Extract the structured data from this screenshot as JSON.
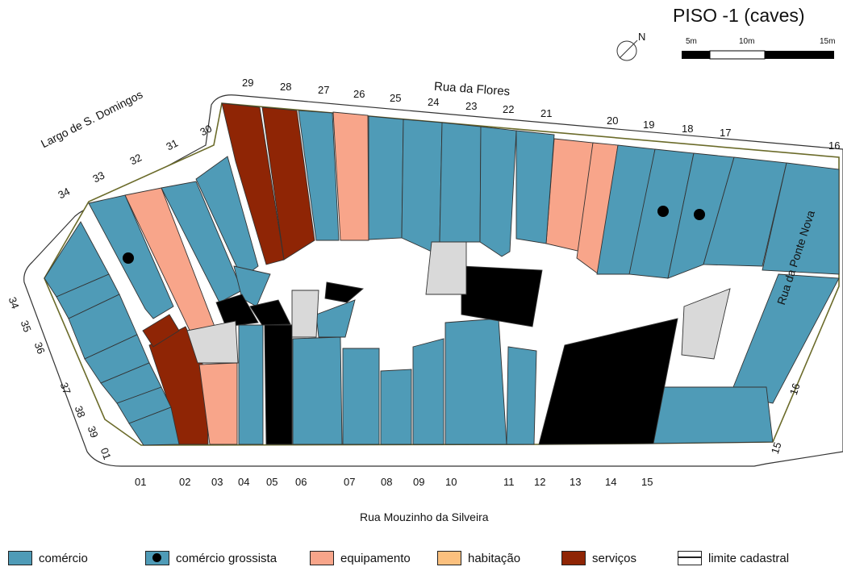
{
  "title": "PISO -1 (caves)",
  "compass": {
    "label": "N"
  },
  "scale": {
    "labels": [
      "5m",
      "10m",
      "15m"
    ]
  },
  "streets": {
    "flores": "Rua da Flores",
    "domingos": "Largo de S. Domingos",
    "ponte_nova": "Rua da Ponte Nova",
    "mouzinho": "Rua Mouzinho da Silveira"
  },
  "numbers": {
    "flores": [
      "29",
      "28",
      "27",
      "26",
      "25",
      "24",
      "23",
      "22",
      "21",
      "20",
      "19",
      "18",
      "17",
      "16"
    ],
    "domingos": [
      "34",
      "33",
      "32",
      "31",
      "30"
    ],
    "west": [
      "34",
      "35",
      "36",
      "37",
      "38",
      "39",
      "01"
    ],
    "bottom": [
      "01",
      "02",
      "03",
      "04",
      "05",
      "06",
      "07",
      "08",
      "09",
      "10",
      "11",
      "12",
      "13",
      "14",
      "15"
    ],
    "east": [
      "16",
      "15"
    ]
  },
  "legend": [
    {
      "key": "comercio",
      "label": "comércio",
      "color": "#4f9bb7"
    },
    {
      "key": "grossista",
      "label": "comércio grossista",
      "color": "#4f9bb7"
    },
    {
      "key": "equipamento",
      "label": "equipamento",
      "color": "#f8a58a"
    },
    {
      "key": "habitacao",
      "label": "habitação",
      "color": "#fbc07e"
    },
    {
      "key": "servicos",
      "label": "serviços",
      "color": "#8f2505"
    },
    {
      "key": "limite",
      "label": "limite cadastral",
      "color": "#ffffff"
    }
  ]
}
